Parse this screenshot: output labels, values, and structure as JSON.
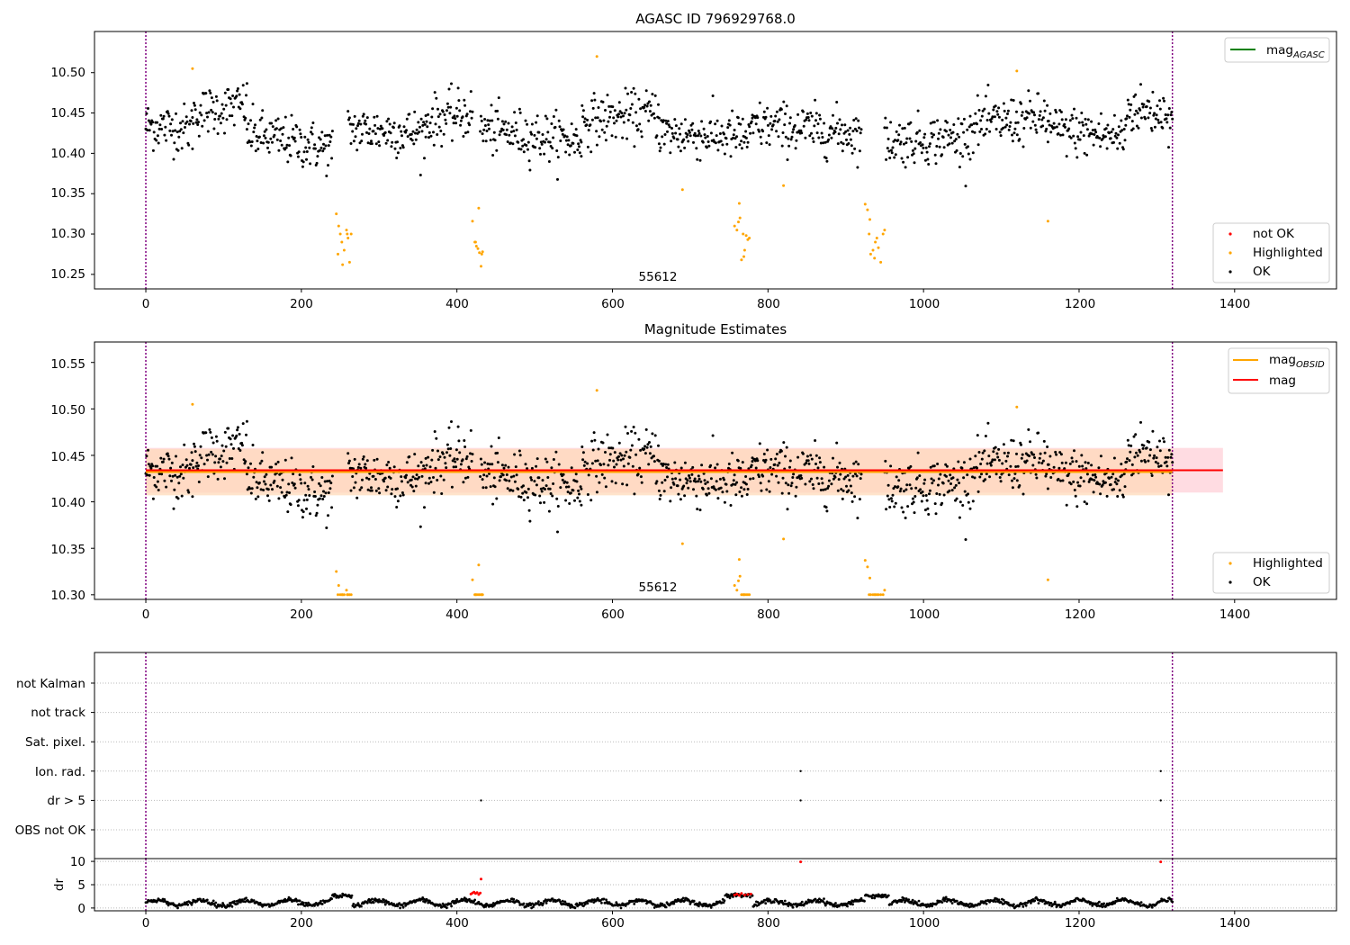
{
  "colors": {
    "ok": "#000000",
    "highlighted": "#ffa500",
    "not_ok": "#ff0000",
    "mag_line": "#ff0000",
    "mag_obsid_line": "#ffa500",
    "mag_agasc_line": "#008000",
    "obs_boundary": "#800080",
    "band_mag": "#ffc0cb",
    "band_obsid": "#ffdab9",
    "grid": "#bbbbbb"
  },
  "chart_data": [
    {
      "type": "scatter",
      "title": "AGASC ID 796929768.0",
      "xlabel": "",
      "ylabel": "",
      "xlim": [
        -66,
        1531
      ],
      "ylim": [
        10.232,
        10.551
      ],
      "xticks": [
        0,
        200,
        400,
        600,
        800,
        1000,
        1200,
        1400
      ],
      "yticks": [
        10.25,
        10.3,
        10.35,
        10.4,
        10.45,
        10.5
      ],
      "ytick_labels": [
        "10.25",
        "10.30",
        "10.35",
        "10.40",
        "10.45",
        "10.50"
      ],
      "obs_boundaries": [
        0,
        1320
      ],
      "annotation": {
        "text": "55612",
        "x": 660,
        "y": 10.247
      },
      "legend_lines": {
        "position": "top-right",
        "entries": [
          {
            "name": "mag",
            "subscript": "AGASC",
            "color": "#008000"
          }
        ]
      },
      "legend_points": {
        "position": "bottom-right",
        "entries": [
          {
            "name": "not OK",
            "color": "#ff0000"
          },
          {
            "name": "Highlighted",
            "color": "#ffa500"
          },
          {
            "name": "OK",
            "color": "#000000"
          }
        ]
      },
      "ok_series": {
        "x_range": [
          0,
          1320
        ],
        "segments": [
          {
            "x": [
              0,
              60
            ],
            "y": [
              10.435,
              10.43
            ]
          },
          {
            "x": [
              60,
              130
            ],
            "y": [
              10.45,
              10.46
            ]
          },
          {
            "x": [
              130,
              240
            ],
            "y": [
              10.425,
              10.405
            ]
          },
          {
            "x": [
              260,
              360
            ],
            "y": [
              10.43,
              10.425
            ]
          },
          {
            "x": [
              360,
              420
            ],
            "y": [
              10.44,
              10.45
            ]
          },
          {
            "x": [
              430,
              560
            ],
            "y": [
              10.43,
              10.415
            ]
          },
          {
            "x": [
              560,
              660
            ],
            "y": [
              10.44,
              10.45
            ]
          },
          {
            "x": [
              660,
              780
            ],
            "y": [
              10.425,
              10.42
            ]
          },
          {
            "x": [
              780,
              920
            ],
            "y": [
              10.435,
              10.425
            ]
          },
          {
            "x": [
              950,
              1060
            ],
            "y": [
              10.415,
              10.42
            ]
          },
          {
            "x": [
              1060,
              1160
            ],
            "y": [
              10.435,
              10.445
            ]
          },
          {
            "x": [
              1160,
              1260
            ],
            "y": [
              10.43,
              10.42
            ]
          },
          {
            "x": [
              1260,
              1320
            ],
            "y": [
              10.455,
              10.45
            ]
          }
        ],
        "spread": 0.015
      },
      "highlighted_points": {
        "x": [
          60,
          580,
          1120,
          690,
          820,
          1160,
          245,
          248,
          250,
          252,
          255,
          258,
          260,
          262,
          264,
          247,
          253,
          259,
          420,
          423,
          425,
          427,
          429,
          431,
          433,
          424,
          428,
          432,
          757,
          760,
          762,
          764,
          766,
          768,
          770,
          772,
          774,
          776,
          763,
          769,
          925,
          928,
          930,
          932,
          935,
          938,
          940,
          942,
          945,
          948,
          950,
          931,
          937
        ],
        "y": [
          10.505,
          10.52,
          10.502,
          10.355,
          10.36,
          10.316,
          10.325,
          10.31,
          10.3,
          10.29,
          10.28,
          10.305,
          10.295,
          10.265,
          10.3,
          10.275,
          10.262,
          10.3,
          10.316,
          10.29,
          10.285,
          10.282,
          10.277,
          10.26,
          10.278,
          10.29,
          10.332,
          10.275,
          10.31,
          10.305,
          10.315,
          10.32,
          10.268,
          10.3,
          10.28,
          10.298,
          10.293,
          10.295,
          10.338,
          10.272,
          10.337,
          10.33,
          10.3,
          10.275,
          10.28,
          10.29,
          10.295,
          10.283,
          10.265,
          10.3,
          10.305,
          10.318,
          10.27
        ]
      }
    },
    {
      "type": "scatter",
      "title": "Magnitude Estimates",
      "xlabel": "",
      "ylabel": "",
      "xlim": [
        -66,
        1531
      ],
      "ylim": [
        10.295,
        10.572
      ],
      "xticks": [
        0,
        200,
        400,
        600,
        800,
        1000,
        1200,
        1400
      ],
      "yticks": [
        10.3,
        10.35,
        10.4,
        10.45,
        10.5,
        10.55
      ],
      "ytick_labels": [
        "10.30",
        "10.35",
        "10.40",
        "10.45",
        "10.50",
        "10.55"
      ],
      "obs_boundaries": [
        0,
        1320
      ],
      "annotation": {
        "text": "55612",
        "x": 660,
        "y": 10.304
      },
      "mag": {
        "value": 10.434,
        "band": [
          10.41,
          10.458
        ],
        "x": [
          0,
          1385
        ]
      },
      "mag_obsid": {
        "value": 10.432,
        "band": [
          10.407,
          10.457
        ],
        "x": [
          0,
          1320
        ]
      },
      "legend_lines": {
        "position": "top-right",
        "entries": [
          {
            "name": "mag",
            "subscript": "OBSID",
            "color": "#ffa500"
          },
          {
            "name": "mag",
            "subscript": "",
            "color": "#ff0000"
          }
        ]
      },
      "legend_points": {
        "position": "bottom-right",
        "entries": [
          {
            "name": "Highlighted",
            "color": "#ffa500"
          },
          {
            "name": "OK",
            "color": "#000000"
          }
        ]
      },
      "clip_value": 10.3
    },
    {
      "type": "scatter",
      "title": "",
      "xlabel": "",
      "ylabel": "",
      "xlim": [
        -66,
        1531
      ],
      "categories": [
        "not Kalman",
        "not track",
        "Sat. pixel.",
        "Ion. rad.",
        "dr > 5",
        "OBS not OK"
      ],
      "flag_points": [
        {
          "category": "Ion. rad.",
          "x": [
            842,
            1305
          ]
        },
        {
          "category": "dr > 5",
          "x": [
            431,
            842,
            1305
          ]
        }
      ],
      "obs_boundaries": [
        0,
        1320
      ]
    },
    {
      "type": "scatter",
      "title": "",
      "xlabel": "",
      "ylabel": "dr",
      "xlim": [
        -66,
        1531
      ],
      "ylim": [
        -0.6,
        10.6
      ],
      "yticks": [
        0,
        5,
        10
      ],
      "ytick_labels": [
        "0",
        "5",
        "10"
      ],
      "obs_boundaries": [
        0,
        1320
      ],
      "dr_series": {
        "x_range": [
          0,
          1320
        ],
        "baseline": 1.1,
        "segments": [
          {
            "x": [
              240,
              265
            ],
            "y": 2.6
          },
          {
            "x": [
              745,
              780
            ],
            "y": 2.7
          },
          {
            "x": [
              925,
              955
            ],
            "y": 2.6
          }
        ]
      },
      "not_ok_points": {
        "x": [
          418,
          420,
          422,
          424,
          426,
          428,
          430,
          431,
          757,
          760,
          763,
          766,
          770,
          774,
          778,
          842,
          1305
        ],
        "y": [
          3.0,
          3.2,
          3.4,
          3.1,
          3.3,
          2.9,
          3.2,
          6.2,
          2.8,
          3.0,
          2.7,
          3.1,
          2.8,
          2.9,
          3.0,
          9.9,
          9.9
        ]
      }
    }
  ]
}
